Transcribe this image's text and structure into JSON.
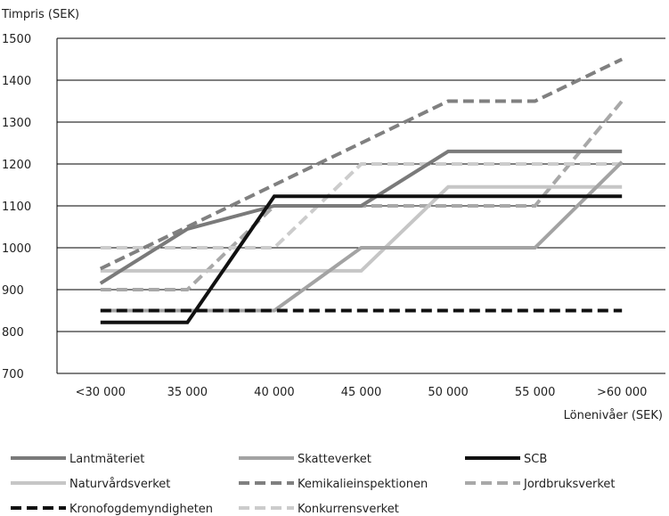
{
  "chart_data": {
    "type": "line",
    "ylabel": "Timpris (SEK)",
    "xlabel": "Lönenivåer (SEK)",
    "categories": [
      "<30 000",
      "35 000",
      "40 000",
      "45 000",
      "50 000",
      "55 000",
      ">60 000"
    ],
    "ylim": [
      700,
      1500
    ],
    "yticks": [
      700,
      800,
      900,
      1000,
      1100,
      1200,
      1300,
      1400,
      1500
    ],
    "grid": "horizontal",
    "legend_position": "bottom",
    "series": [
      {
        "name": "Lantmäteriet",
        "x": [
          0,
          1,
          2,
          3,
          4,
          5,
          6
        ],
        "values": [
          915,
          1045,
          1100,
          1100,
          1230,
          1230,
          1230
        ],
        "color": "#7a7a7a",
        "dash": "solid"
      },
      {
        "name": "Skatteverket",
        "x": [
          0,
          2,
          3,
          5,
          6
        ],
        "values": [
          850,
          850,
          1000,
          1000,
          1205
        ],
        "color": "#a3a3a3",
        "dash": "solid"
      },
      {
        "name": "SCB",
        "x": [
          0,
          1,
          2,
          3,
          4,
          5,
          6
        ],
        "values": [
          822,
          822,
          1123,
          1123,
          1123,
          1123,
          1123
        ],
        "color": "#111111",
        "dash": "solid"
      },
      {
        "name": "Naturvårdsverket",
        "x": [
          0,
          1,
          2,
          3,
          4,
          5,
          6
        ],
        "values": [
          945,
          945,
          945,
          945,
          1145,
          1145,
          1145
        ],
        "color": "#c6c6c6",
        "dash": "solid"
      },
      {
        "name": "Kemikalieinspektionen",
        "x": [
          0,
          1,
          2,
          3,
          4,
          5,
          6
        ],
        "values": [
          950,
          1050,
          1150,
          1250,
          1350,
          1350,
          1450
        ],
        "color": "#808080",
        "dash": "dashed"
      },
      {
        "name": "Jordbruksverket",
        "x": [
          0,
          1,
          2,
          3,
          4,
          5,
          6
        ],
        "values": [
          900,
          900,
          1100,
          1100,
          1100,
          1100,
          1350
        ],
        "color": "#a8a8a8",
        "dash": "dashed"
      },
      {
        "name": "Kronofogdemyndigheten",
        "x": [
          0,
          1,
          2,
          3,
          4,
          5,
          6
        ],
        "values": [
          850,
          850,
          850,
          850,
          850,
          850,
          850
        ],
        "color": "#111111",
        "dash": "dashed"
      },
      {
        "name": "Konkurrensverket",
        "x": [
          0,
          1,
          2,
          3,
          4,
          5,
          6
        ],
        "values": [
          1000,
          1000,
          1000,
          1200,
          1200,
          1200,
          1200
        ],
        "color": "#cccccc",
        "dash": "dashed"
      }
    ]
  }
}
